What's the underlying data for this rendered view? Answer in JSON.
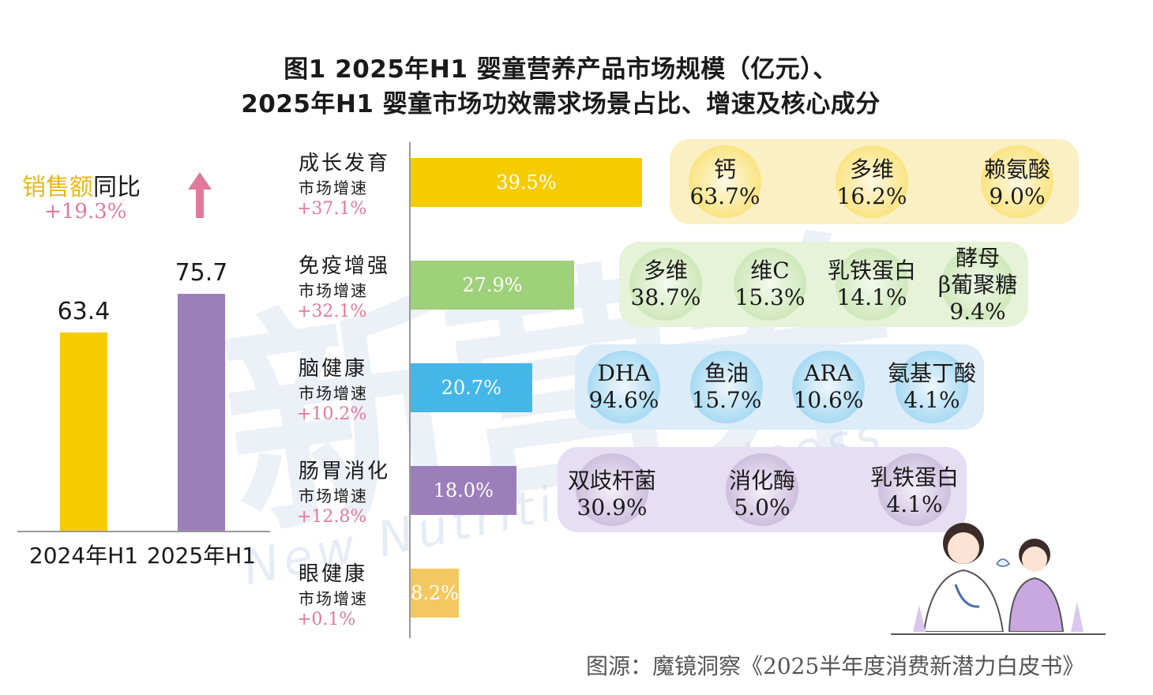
{
  "title_line1": "图1 2025年H1 婴童营养产品市场规模（亿元）、",
  "title_line2": "2025年H1 婴童市场功效需求场景占比、增速及核心成分",
  "watermark": {
    "main": "新营养",
    "sub": "New Nutrition Business"
  },
  "yoy": {
    "label_a": "销售额",
    "label_b": "同比",
    "value": "+19.3%",
    "arrow": "up-arrow-icon"
  },
  "source": "图源：魔镜洞察《2025半年度消费新潜力白皮书》",
  "colors": {
    "yellow": "#f5cc00",
    "purple": "#9b7fba",
    "green": "#9fd07a",
    "blue": "#45b6e8",
    "lightyellow": "#f4c860",
    "pink": "#e07a9a"
  },
  "chart_data": [
    {
      "type": "bar",
      "categories": [
        "2024年H1",
        "2025年H1"
      ],
      "values": [
        63.4,
        75.7
      ],
      "value_labels": [
        "63.4",
        "75.7"
      ],
      "colors": [
        "#f5cc00",
        "#9b7fba"
      ]
    },
    {
      "type": "bar",
      "orientation": "horizontal",
      "categories": [
        {
          "name": "成长发育",
          "sub": "市场增速",
          "growth": "+37.1%",
          "share": 39.5,
          "share_label": "39.5%",
          "color": "#f5cc00",
          "panel_color": "#fbefc4",
          "ingredients": [
            {
              "name": "钙",
              "value": "63.7%"
            },
            {
              "name": "多维",
              "value": "16.2%"
            },
            {
              "name": "赖氨酸",
              "value": "9.0%"
            }
          ]
        },
        {
          "name": "免疫增强",
          "sub": "市场增速",
          "growth": "+32.1%",
          "share": 27.9,
          "share_label": "27.9%",
          "color": "#9fd07a",
          "panel_color": "#e6f3d8",
          "ingredients": [
            {
              "name": "多维",
              "value": "38.7%"
            },
            {
              "name": "维C",
              "value": "15.3%"
            },
            {
              "name": "乳铁蛋白",
              "value": "14.1%"
            },
            {
              "name": "β葡聚糖",
              "value": "9.4%",
              "top": "酵母"
            }
          ]
        },
        {
          "name": "脑健康",
          "sub": "市场增速",
          "growth": "+10.2%",
          "share": 20.7,
          "share_label": "20.7%",
          "color": "#45b6e8",
          "panel_color": "#dcecf8",
          "ingredients": [
            {
              "name": "DHA",
              "value": "94.6%"
            },
            {
              "name": "鱼油",
              "value": "15.7%"
            },
            {
              "name": "ARA",
              "value": "10.6%"
            },
            {
              "name": "氨基丁酸",
              "value": "4.1%"
            }
          ]
        },
        {
          "name": "肠胃消化",
          "sub": "市场增速",
          "growth": "+12.8%",
          "share": 18.0,
          "share_label": "18.0%",
          "color": "#9b7fba",
          "panel_color": "#e6def2",
          "ingredients": [
            {
              "name": "双歧杆菌",
              "value": "30.9%"
            },
            {
              "name": "消化酶",
              "value": "5.0%"
            },
            {
              "name": "乳铁蛋白",
              "value": "4.1%"
            }
          ]
        },
        {
          "name": "眼健康",
          "sub": "市场增速",
          "growth": "+0.1%",
          "share": 8.2,
          "share_label": "8.2%",
          "color": "#f4c860",
          "panel_color": null,
          "ingredients": []
        }
      ]
    }
  ]
}
